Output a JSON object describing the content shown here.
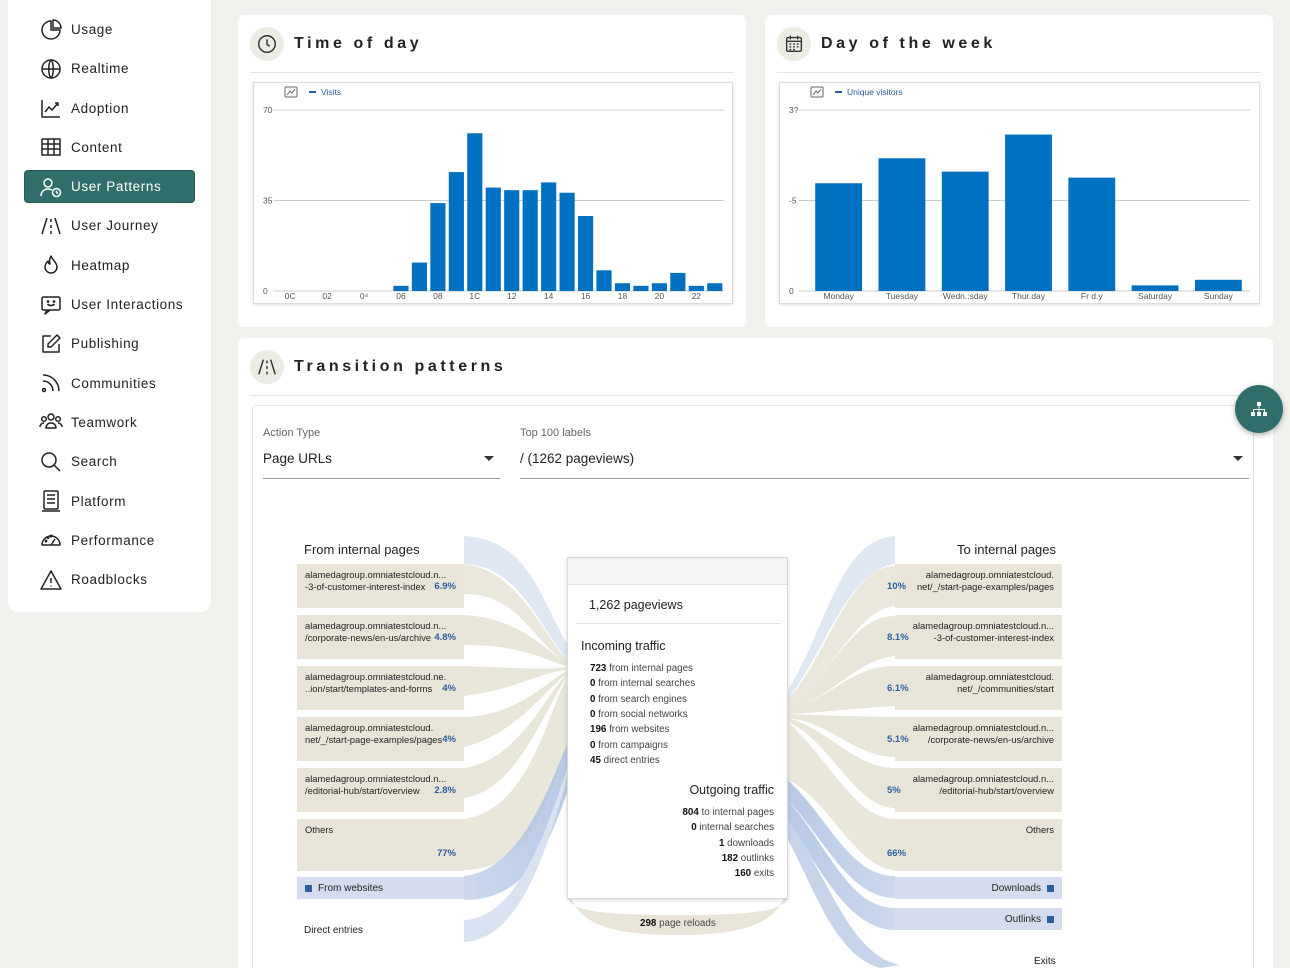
{
  "sidebar": {
    "items": [
      {
        "label": "Usage",
        "icon": "pie-chart-icon",
        "active": false
      },
      {
        "label": "Realtime",
        "icon": "globe-icon",
        "active": false
      },
      {
        "label": "Adoption",
        "icon": "trend-chart-icon",
        "active": false
      },
      {
        "label": "Content",
        "icon": "table-icon",
        "active": false
      },
      {
        "label": "User Patterns",
        "icon": "user-clock-icon",
        "active": true
      },
      {
        "label": "User Journey",
        "icon": "road-icon",
        "active": false
      },
      {
        "label": "Heatmap",
        "icon": "flame-icon",
        "active": false
      },
      {
        "label": "User Interactions",
        "icon": "chat-smile-icon",
        "active": false
      },
      {
        "label": "Publishing",
        "icon": "edit-icon",
        "active": false
      },
      {
        "label": "Communities",
        "icon": "rss-icon",
        "active": false
      },
      {
        "label": "Teamwork",
        "icon": "team-icon",
        "active": false
      },
      {
        "label": "Search",
        "icon": "search-icon",
        "active": false
      },
      {
        "label": "Platform",
        "icon": "platform-icon",
        "active": false
      },
      {
        "label": "Performance",
        "icon": "gauge-icon",
        "active": false
      },
      {
        "label": "Roadblocks",
        "icon": "warning-icon",
        "active": false
      }
    ]
  },
  "time_of_day": {
    "title": "Time of day",
    "legend": "Visits"
  },
  "day_of_week": {
    "title": "Day of the week",
    "legend": "Unique visitors"
  },
  "chart_data": [
    {
      "type": "bar",
      "title": "",
      "legend": [
        "Visits"
      ],
      "categories": [
        "00",
        "01",
        "02",
        "03",
        "04",
        "05",
        "06",
        "07",
        "08",
        "09",
        "10",
        "11",
        "12",
        "13",
        "14",
        "15",
        "16",
        "17",
        "18",
        "19",
        "20",
        "21",
        "22",
        "23"
      ],
      "x_tick_labels": [
        "0C",
        "02",
        "0⁴",
        "06",
        "08",
        "1C",
        "12",
        "14",
        "16",
        "18",
        "20",
        "22"
      ],
      "y_tick_labels": [
        "70",
        "35",
        "0"
      ],
      "series": [
        {
          "name": "Visits",
          "values": [
            0,
            0,
            0,
            0,
            0,
            0,
            2,
            11,
            34,
            46,
            61,
            40,
            39,
            39,
            42,
            38,
            29,
            8,
            3,
            2,
            3,
            7,
            2,
            3
          ]
        }
      ],
      "ylim": [
        0,
        70
      ],
      "grid": true,
      "color": "#0070c0"
    },
    {
      "type": "bar",
      "title": "",
      "legend": [
        "Unique visitors"
      ],
      "categories": [
        "Monday",
        "Tuesday",
        "Wedn.:sday",
        "Thur.day",
        "Fr d.y",
        "Saturday",
        "Sunday"
      ],
      "y_tick_labels": [
        "3?",
        "-5",
        "0"
      ],
      "series": [
        {
          "name": "Unique visitors",
          "values": [
            25,
            30.8,
            27.7,
            36.3,
            26.3,
            1.3,
            2.6
          ]
        }
      ],
      "ylim": [
        0,
        42
      ],
      "grid": true,
      "color": "#0070c0"
    }
  ],
  "transition": {
    "title": "Transition patterns",
    "action_type_label": "Action Type",
    "action_type_value": "Page URLs",
    "top_labels_label": "Top 100 labels",
    "top_labels_value": "/ (1262 pageviews)",
    "from_title": "From internal pages",
    "to_title": "To internal pages",
    "from_pages": [
      {
        "l1": "alamedagroup.omniatestcloud.n...",
        "l2": "-3-of-customer-interest-index",
        "pct": "6.9%"
      },
      {
        "l1": "alamedagroup.omniatestcloud.n...",
        "l2": "/corporate-news/en-us/archive",
        "pct": "4.8%"
      },
      {
        "l1": "alamedagroup.omniatestcloud.ne.",
        "l2": "..ion/start/templates-and-forms",
        "pct": "4%"
      },
      {
        "l1": "alamedagroup.omniatestcloud.",
        "l2": "net/_/start-page-examples/pages",
        "pct": "4%"
      },
      {
        "l1": "alamedagroup.omniatestcloud.n...",
        "l2": "/editorial-hub/start/overview",
        "pct": "2.8%"
      },
      {
        "l1": "Others",
        "l2": "",
        "pct": "77%"
      }
    ],
    "to_pages": [
      {
        "l1": "alamedagroup.omniatestcloud.",
        "l2": "net/_/start-page-examples/pages",
        "pct": "10%"
      },
      {
        "l1": "alamedagroup.omniatestcloud.n...",
        "l2": "-3-of-customer-interest-index",
        "pct": "8.1%"
      },
      {
        "l1": "alamedagroup.omniatestcloud.",
        "l2": "net/_/communities/start",
        "pct": "6.1%"
      },
      {
        "l1": "alamedagroup.omniatestcloud.n...",
        "l2": "/corporate-news/en-us/archive",
        "pct": "5.1%"
      },
      {
        "l1": "alamedagroup.omniatestcloud.n...",
        "l2": "/editorial-hub/start/overview",
        "pct": "5%"
      },
      {
        "l1": "Others",
        "l2": "",
        "pct": "66%"
      }
    ],
    "from_websites": "From websites",
    "direct_entries": "Direct entries",
    "downloads": "Downloads",
    "outlinks": "Outlinks",
    "exits": "Exits",
    "center": {
      "pageviews": "1,262 pageviews",
      "incoming_title": "Incoming traffic",
      "incoming": [
        {
          "n": "723",
          "t": " from internal pages"
        },
        {
          "n": "0",
          "t": " from internal searches"
        },
        {
          "n": "0",
          "t": " from search engines"
        },
        {
          "n": "0",
          "t": " from social networks"
        },
        {
          "n": "196",
          "t": " from websites"
        },
        {
          "n": "0",
          "t": " from campaigns"
        },
        {
          "n": "45",
          "t": " direct entries"
        }
      ],
      "outgoing_title": "Outgoing traffic",
      "outgoing": [
        {
          "n": "804",
          "t": " to internal pages"
        },
        {
          "n": "0",
          "t": " internal searches"
        },
        {
          "n": "1",
          "t": " downloads"
        },
        {
          "n": "182",
          "t": " outlinks"
        },
        {
          "n": "160",
          "t": " exits"
        }
      ],
      "reloads_n": "298",
      "reloads_t": " page reloads"
    }
  }
}
